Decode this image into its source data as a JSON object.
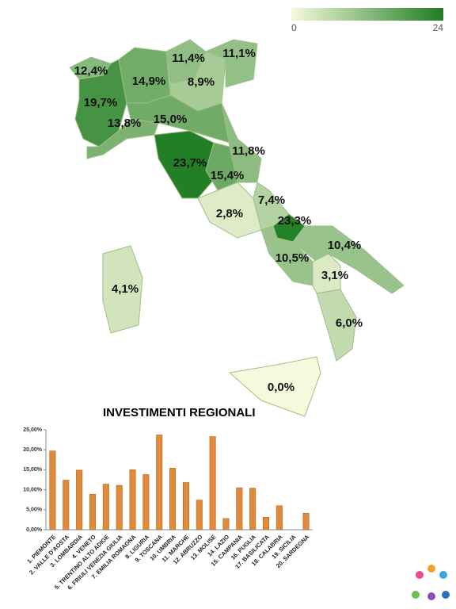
{
  "chart_data": [
    {
      "type": "choropleth",
      "values": [
        19.7,
        12.4,
        14.9,
        8.9,
        11.4,
        11.1,
        15.0,
        13.8,
        23.7,
        15.4,
        11.8,
        7.4,
        23.3,
        2.8,
        10.5,
        10.4,
        3.1,
        6.0,
        0.0,
        4.1
      ],
      "value_labels": [
        "19,7%",
        "12,4%",
        "14,9%",
        "8,9%",
        "11,4%",
        "11,1%",
        "15,0%",
        "13,8%",
        "23,7%",
        "15,4%",
        "11,8%",
        "7,4%",
        "23,3%",
        "2,8%",
        "10,5%",
        "10,4%",
        "3,1%",
        "6,0%",
        "0,0%",
        "4,1%"
      ],
      "clim": [
        0,
        24
      ],
      "cticks": [
        0,
        24
      ],
      "colorscale": [
        "#f7f9dc",
        "#1f7d23"
      ]
    },
    {
      "type": "bar",
      "title": "INVESTIMENTI REGIONALI",
      "categories": [
        "1.   PIEMONTE",
        "2.   VALLE D'AOSTA",
        "3.   LOMBARDIA",
        "4.   VENETO",
        "5.   TRENTINO ALTO ADIGE",
        "6.   FRIULI VENEZIA GIULIA",
        "7.   EMILIA ROMAGNA",
        "8.   LIGURIA",
        "9.   TOSCANA",
        "10. UMBRIA",
        "11. MARCHE",
        "12. ABRUZZO",
        "13. MOLISE",
        "14. LAZIO",
        "15. CAMPANIA",
        "16. PUGLIA",
        "17. BASILICATA",
        "18. CALABRIA",
        "19. SICILIA",
        "20. SARDEGNA"
      ],
      "values": [
        19.7,
        12.4,
        14.9,
        8.9,
        11.4,
        11.1,
        15.0,
        13.8,
        23.7,
        15.4,
        11.8,
        7.4,
        23.3,
        2.8,
        10.5,
        10.4,
        3.1,
        6.0,
        0.0,
        4.1
      ],
      "color": "#e08a3c",
      "ylim": [
        0,
        25
      ],
      "yticks": [
        {
          "value": 0,
          "label": "0,00%"
        },
        {
          "value": 5,
          "label": "5,00%"
        },
        {
          "value": 10,
          "label": "10,00%"
        },
        {
          "value": 15,
          "label": "15,00%"
        },
        {
          "value": 20,
          "label": "20,00%"
        },
        {
          "value": 25,
          "label": "25,00%"
        }
      ],
      "grid": false
    }
  ]
}
